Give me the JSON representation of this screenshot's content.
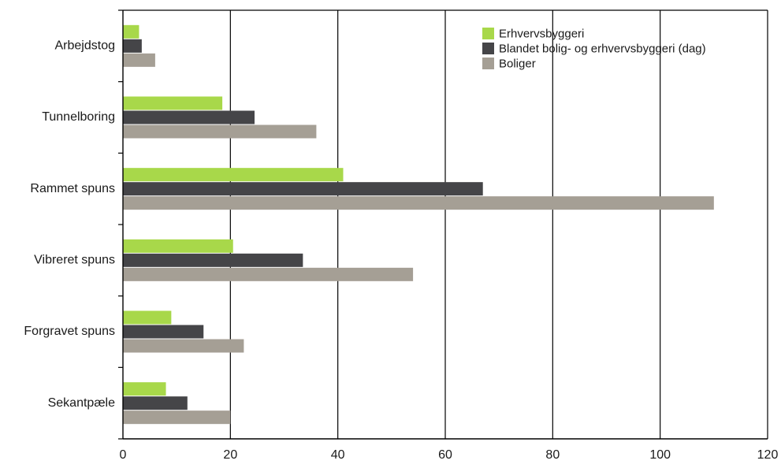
{
  "chart_data": {
    "type": "bar",
    "orientation": "horizontal",
    "categories": [
      "Arbejdstog",
      "Tunnelboring",
      "Rammet spuns",
      "Vibreret spuns",
      "Forgravet spuns",
      "Sekantpæle"
    ],
    "series": [
      {
        "name": "Erhvervsbyggeri",
        "color": "#a8d84a",
        "values": [
          3,
          18.5,
          41,
          20.5,
          9,
          8
        ]
      },
      {
        "name": "Blandet bolig- og erhvervsbyggeri (dag)",
        "color": "#454548",
        "values": [
          3.5,
          24.5,
          67,
          33.5,
          15,
          12
        ]
      },
      {
        "name": "Boliger",
        "color": "#a59f95",
        "values": [
          6,
          36,
          110,
          54,
          22.5,
          20
        ]
      }
    ],
    "xlim": [
      0,
      120
    ],
    "xticks": [
      0,
      20,
      40,
      60,
      80,
      100,
      120
    ],
    "grid": "vertical",
    "legend_position": "top-right",
    "title": "",
    "xlabel": "",
    "ylabel": ""
  }
}
